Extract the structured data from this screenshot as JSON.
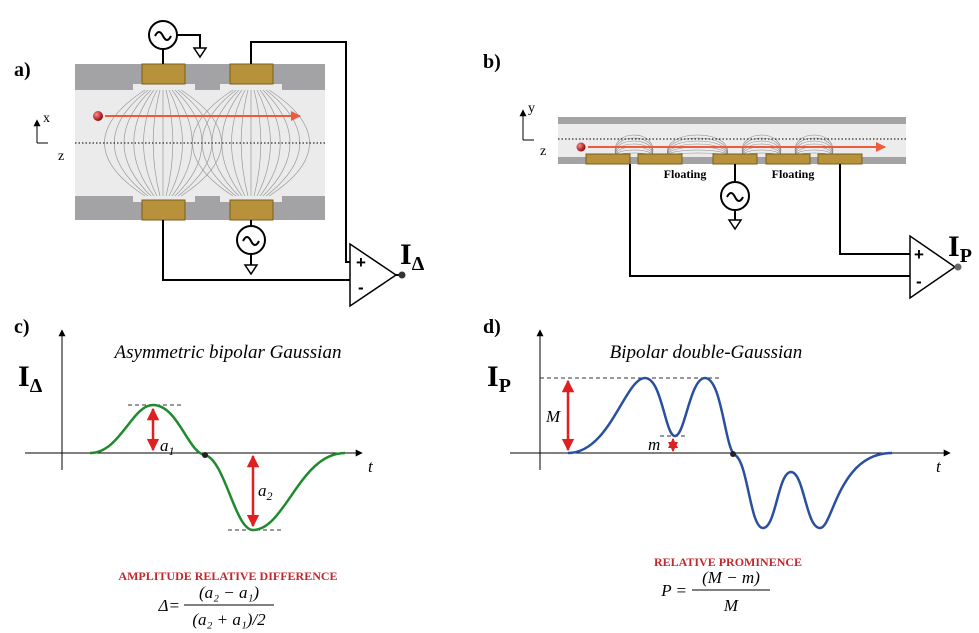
{
  "panel_a": {
    "label": "a)",
    "axis_x": "x",
    "axis_z": "z",
    "amp_plus": "+",
    "amp_minus": "-",
    "output": {
      "main": "I",
      "sub": "Δ"
    }
  },
  "panel_b": {
    "label": "b)",
    "axis_y": "y",
    "axis_z": "z",
    "floating_1": "Floating",
    "floating_2": "Floating",
    "amp_plus": "+",
    "amp_minus": "-",
    "output": {
      "main": "I",
      "sub": "P"
    }
  },
  "panel_c": {
    "label": "c)",
    "title": "Asymmetric bipolar Gaussian",
    "y_label": {
      "main": "I",
      "sub": "Δ"
    },
    "x_label": "t",
    "a1": {
      "main": "a",
      "sub": "1"
    },
    "a2": {
      "main": "a",
      "sub": "2"
    },
    "metric": "AMPLITUDE RELATIVE DIFFERENCE",
    "formula": {
      "lhs": "Δ=",
      "numerator": "(a₂ − a₁)",
      "denominator": "(a₂ + a₁)/2"
    }
  },
  "panel_d": {
    "label": "d)",
    "title": "Bipolar double-Gaussian",
    "y_label": {
      "main": "I",
      "sub": "P"
    },
    "x_label": "t",
    "big_m": "M",
    "small_m": "m",
    "metric": "RELATIVE PROMINENCE",
    "formula": {
      "lhs": "P =",
      "numerator": "(M − m)",
      "denominator": "M"
    }
  }
}
